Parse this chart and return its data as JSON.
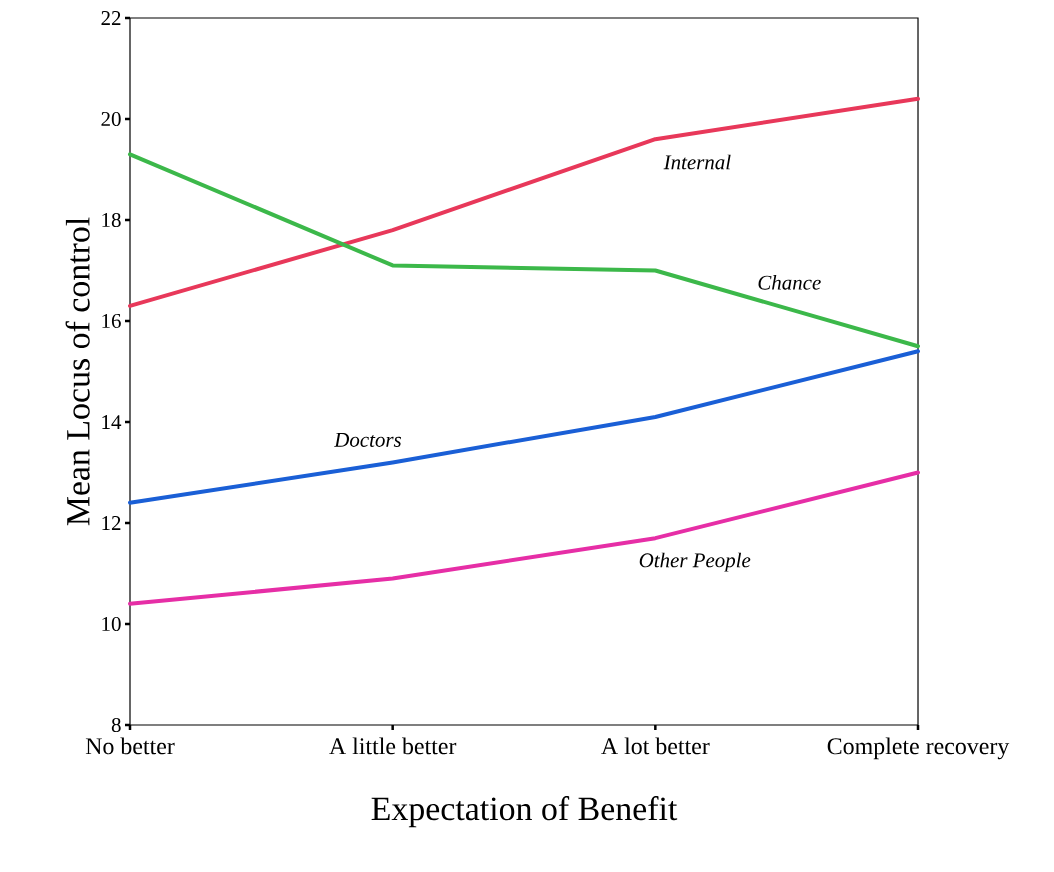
{
  "chart_data": {
    "type": "line",
    "xlabel": "Expectation of Benefit",
    "ylabel": "Mean Locus of control",
    "categories": [
      "No better",
      "A little better",
      "A lot better",
      "Complete recovery"
    ],
    "series": [
      {
        "name": "Internal",
        "color": "#e8385a",
        "values": [
          16.3,
          17.8,
          19.6,
          20.4
        ]
      },
      {
        "name": "Chance",
        "color": "#3cb84a",
        "values": [
          19.3,
          17.1,
          17.0,
          15.5
        ]
      },
      {
        "name": "Doctors",
        "color": "#1a5fd6",
        "values": [
          12.4,
          13.2,
          14.1,
          15.4
        ]
      },
      {
        "name": "Other People",
        "color": "#e62ea6",
        "values": [
          10.4,
          10.9,
          11.7,
          13.0
        ]
      }
    ],
    "ylim": [
      8,
      22
    ],
    "yticks": [
      8,
      10,
      12,
      14,
      16,
      18,
      20,
      22
    ],
    "grid": false,
    "legend": false,
    "marker": "none",
    "line_style": "solid"
  }
}
